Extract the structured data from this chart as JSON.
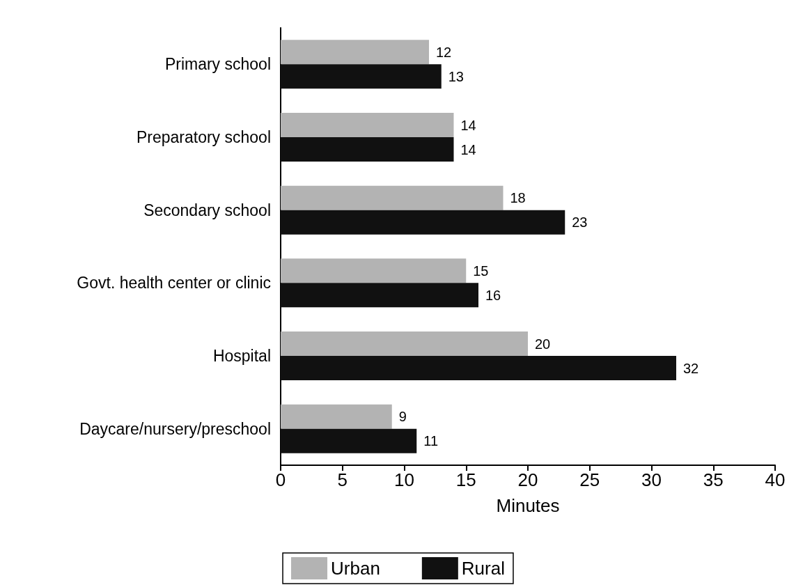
{
  "chart_data": {
    "type": "bar",
    "orientation": "horizontal",
    "xlabel": "Minutes",
    "categories": [
      "Primary school",
      "Preparatory school",
      "Secondary school",
      "Govt. health center or clinic",
      "Hospital",
      "Daycare/nursery/preschool"
    ],
    "series": [
      {
        "name": "Urban",
        "color": "#b3b3b3",
        "values": [
          12,
          14,
          18,
          15,
          20,
          9
        ]
      },
      {
        "name": "Rural",
        "color": "#111111",
        "values": [
          13,
          14,
          23,
          16,
          32,
          11
        ]
      }
    ],
    "xlim": [
      0,
      40
    ],
    "xticks": [
      0,
      5,
      10,
      15,
      20,
      25,
      30,
      35,
      40
    ],
    "data_labels": true,
    "grid": false,
    "legend": "bottom"
  }
}
